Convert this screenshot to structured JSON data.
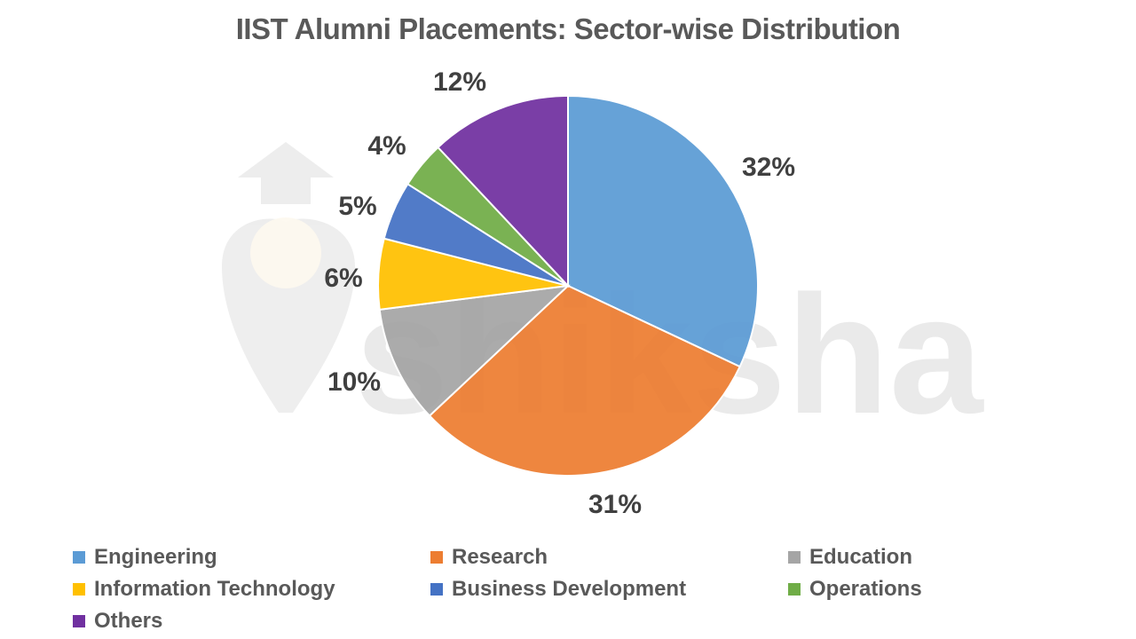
{
  "chart_data": {
    "type": "pie",
    "title": "IIST Alumni Placements: Sector-wise Distribution",
    "categories": [
      "Engineering",
      "Research",
      "Education",
      "Information Technology",
      "Business Development",
      "Operations",
      "Others"
    ],
    "values": [
      32,
      31,
      10,
      6,
      5,
      4,
      12
    ],
    "unit": "%",
    "colors": [
      "#5B9BD5",
      "#ED7D31",
      "#A5A5A5",
      "#FFC000",
      "#4472C4",
      "#70AD47",
      "#7030A0"
    ],
    "data_labels": [
      "32%",
      "31%",
      "10%",
      "6%",
      "5%",
      "4%",
      "12%"
    ],
    "start_angle": "12 o'clock, clockwise",
    "legend_position": "bottom"
  },
  "title": "IIST Alumni Placements: Sector-wise Distribution",
  "watermark": "shiksha",
  "legend": [
    {
      "label": "Engineering",
      "color": "#5B9BD5"
    },
    {
      "label": "Research",
      "color": "#ED7D31"
    },
    {
      "label": "Education",
      "color": "#A5A5A5"
    },
    {
      "label": "Information Technology",
      "color": "#FFC000"
    },
    {
      "label": "Business Development",
      "color": "#4472C4"
    },
    {
      "label": "Operations",
      "color": "#70AD47"
    },
    {
      "label": "Others",
      "color": "#7030A0"
    }
  ]
}
